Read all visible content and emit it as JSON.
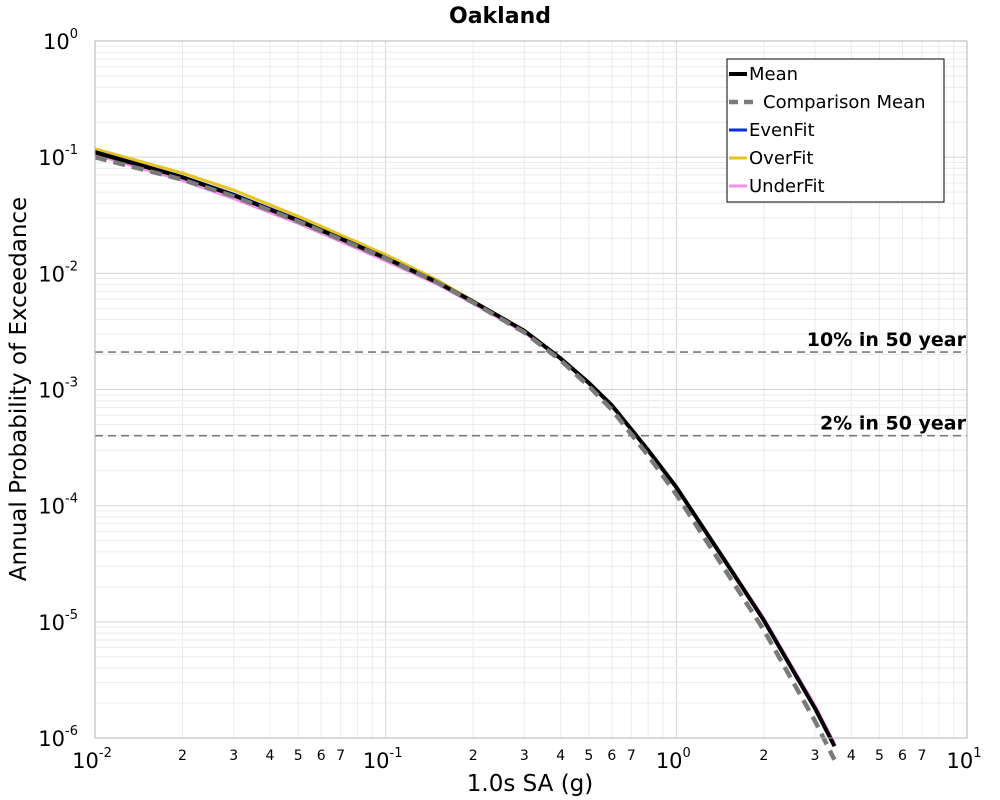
{
  "chart_data": {
    "type": "line",
    "title": "Oakland",
    "xlabel": "1.0s SA (g)",
    "ylabel": "Annual Probability of Exceedance",
    "x_scale": "log",
    "y_scale": "log",
    "xlim": [
      0.01,
      10
    ],
    "ylim": [
      1e-06,
      1
    ],
    "grid": true,
    "legend_position": "top-right",
    "x_major_ticks": [
      {
        "base": "10",
        "exp": "-2",
        "value": 0.01
      },
      {
        "base": "10",
        "exp": "-1",
        "value": 0.1
      },
      {
        "base": "10",
        "exp": "0",
        "value": 1
      },
      {
        "base": "10",
        "exp": "1",
        "value": 10
      }
    ],
    "y_major_ticks": [
      {
        "base": "10",
        "exp": "0",
        "value": 1
      },
      {
        "base": "10",
        "exp": "-1",
        "value": 0.1
      },
      {
        "base": "10",
        "exp": "-2",
        "value": 0.01
      },
      {
        "base": "10",
        "exp": "-3",
        "value": 0.001
      },
      {
        "base": "10",
        "exp": "-4",
        "value": 0.0001
      },
      {
        "base": "10",
        "exp": "-5",
        "value": 1e-05
      },
      {
        "base": "10",
        "exp": "-6",
        "value": 1e-06
      }
    ],
    "x_minor_labels": [
      "2",
      "3",
      "4",
      "5",
      "6",
      "7"
    ],
    "series": [
      {
        "name": "OverFit",
        "color": "#e8c31a",
        "style": "solid",
        "x": [
          0.01,
          0.02,
          0.03,
          0.05,
          0.08,
          0.1,
          0.15,
          0.2,
          0.3,
          0.4,
          0.5,
          0.6,
          0.8,
          1.0,
          1.5,
          2.0,
          3.0,
          3.5
        ],
        "y": [
          0.118,
          0.073,
          0.052,
          0.031,
          0.0185,
          0.0145,
          0.0088,
          0.0058,
          0.0032,
          0.00185,
          0.00113,
          0.00072,
          0.0003,
          0.000143,
          3.1e-05,
          1.02e-05,
          1.8e-06,
          8.5e-07
        ]
      },
      {
        "name": "UnderFit",
        "color": "#f58ee8",
        "style": "solid",
        "x": [
          0.01,
          0.02,
          0.03,
          0.05,
          0.08,
          0.1,
          0.15,
          0.2,
          0.3,
          0.4,
          0.5,
          0.6,
          0.8,
          1.0,
          1.5,
          2.0,
          3.0,
          3.5
        ],
        "y": [
          0.105,
          0.063,
          0.044,
          0.027,
          0.0163,
          0.0128,
          0.0081,
          0.0055,
          0.0031,
          0.00182,
          0.00113,
          0.00073,
          0.000305,
          0.000147,
          3.2e-05,
          1.07e-05,
          1.9e-06,
          9e-07
        ]
      },
      {
        "name": "EvenFit",
        "color": "#0a2fe0",
        "style": "solid",
        "x": [
          0.01,
          0.02,
          0.03,
          0.05,
          0.08,
          0.1,
          0.15,
          0.2,
          0.3,
          0.4,
          0.5,
          0.6,
          0.8,
          1.0,
          1.5,
          2.0,
          3.0,
          3.5
        ],
        "y": [
          0.112,
          0.068,
          0.048,
          0.029,
          0.0175,
          0.0137,
          0.0085,
          0.0057,
          0.0032,
          0.00186,
          0.00115,
          0.00074,
          0.0003,
          0.000145,
          3.1e-05,
          1.04e-05,
          1.8e-06,
          8.5e-07
        ]
      },
      {
        "name": "Mean",
        "color": "#000000",
        "style": "solid",
        "x": [
          0.01,
          0.02,
          0.03,
          0.05,
          0.08,
          0.1,
          0.15,
          0.2,
          0.3,
          0.4,
          0.5,
          0.6,
          0.8,
          1.0,
          1.5,
          2.0,
          3.0,
          3.5
        ],
        "y": [
          0.11,
          0.067,
          0.047,
          0.0285,
          0.0172,
          0.0135,
          0.0084,
          0.0057,
          0.0032,
          0.00185,
          0.00114,
          0.00073,
          0.0003,
          0.000144,
          3.1e-05,
          1.03e-05,
          1.8e-06,
          8.5e-07
        ]
      },
      {
        "name": "Comparison Mean",
        "color": "#7a7a7a",
        "style": "dashed",
        "x": [
          0.01,
          0.02,
          0.03,
          0.05,
          0.08,
          0.1,
          0.15,
          0.2,
          0.3,
          0.4,
          0.5,
          0.6,
          0.8,
          1.0,
          1.5,
          2.0,
          3.0,
          3.5
        ],
        "y": [
          0.1,
          0.064,
          0.046,
          0.028,
          0.017,
          0.0134,
          0.0084,
          0.0056,
          0.0031,
          0.00178,
          0.00107,
          0.00067,
          0.00027,
          0.000125,
          2.6e-05,
          8.5e-06,
          1.4e-06,
          6.5e-07
        ]
      }
    ],
    "legend_order": [
      "Mean",
      "Comparison Mean",
      "EvenFit",
      "OverFit",
      "UnderFit"
    ],
    "reference_lines": [
      {
        "label": "10% in 50 year",
        "y": 0.0021,
        "color": "#7a7a7a",
        "style": "dashed"
      },
      {
        "label": "2% in 50 year",
        "y": 0.0004,
        "color": "#7a7a7a",
        "style": "dashed"
      }
    ]
  }
}
